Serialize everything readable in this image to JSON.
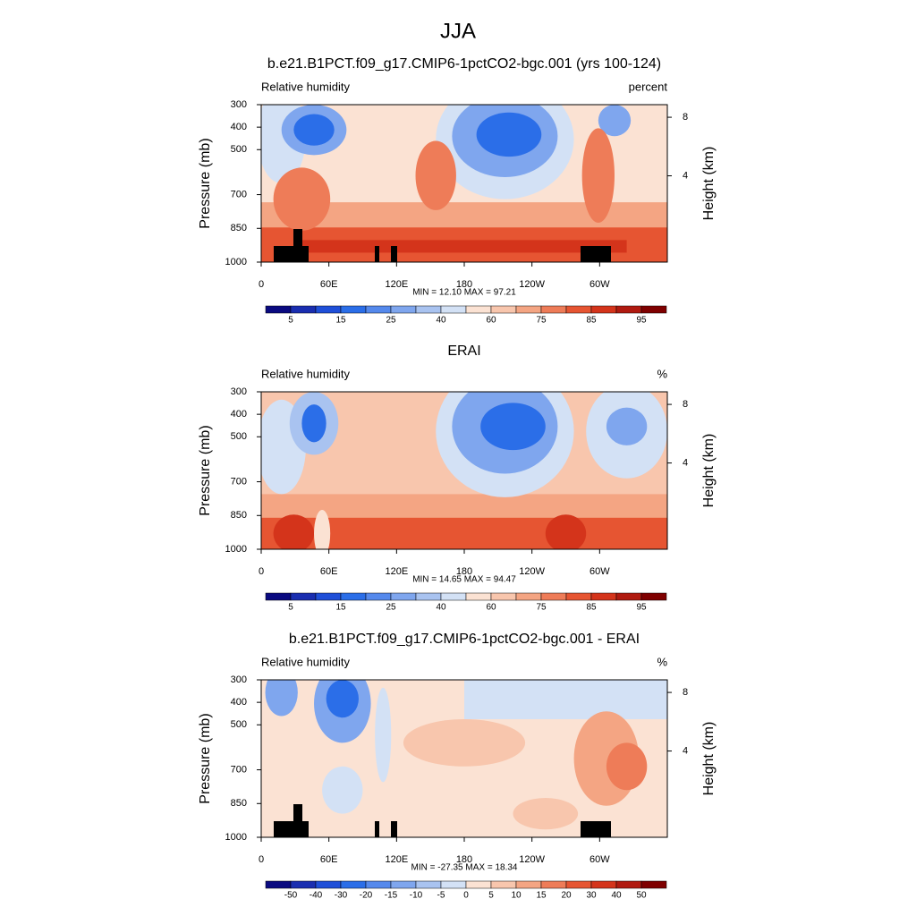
{
  "figure_title": "JJA",
  "chart_data": [
    {
      "type": "contour",
      "title": "b.e21.B1PCT.f09_g17.CMIP6-1pctCO2-bgc.001 (yrs 100-124)",
      "left_label": "Relative humidity",
      "right_label": "percent",
      "ylabel": "Pressure (mb)",
      "y2label": "Height (km)",
      "xlim": [
        0,
        360
      ],
      "xticks": [
        0,
        {
          "value": 60,
          "label": "60E"
        },
        {
          "value": 120,
          "label": "120E"
        },
        180,
        {
          "value": 240,
          "label": "120W"
        },
        {
          "value": 300,
          "label": "60W"
        }
      ],
      "ylim": [
        1000,
        300
      ],
      "yticks": [
        300,
        400,
        500,
        700,
        850,
        1000
      ],
      "y2ticks": [
        4,
        8
      ],
      "stats": "MIN =  12.10  MAX =  97.21",
      "colorbar": {
        "colors": [
          "#0a0a80",
          "#1a2eb0",
          "#1f4fd8",
          "#2b6ee8",
          "#5589ec",
          "#7fa6ee",
          "#a9c3f0",
          "#d3e1f5",
          "#fbe2d3",
          "#f8c6ad",
          "#f4a583",
          "#ee7c58",
          "#e65532",
          "#d4341b",
          "#b01a10",
          "#7f0000"
        ],
        "labels": [
          5,
          15,
          25,
          40,
          60,
          75,
          85,
          95
        ]
      }
    },
    {
      "type": "contour",
      "title": "ERAI",
      "left_label": "Relative humidity",
      "right_label": "%",
      "ylabel": "Pressure (mb)",
      "y2label": "Height (km)",
      "xlim": [
        0,
        360
      ],
      "xticks": [
        0,
        {
          "value": 60,
          "label": "60E"
        },
        {
          "value": 120,
          "label": "120E"
        },
        180,
        {
          "value": 240,
          "label": "120W"
        },
        {
          "value": 300,
          "label": "60W"
        }
      ],
      "ylim": [
        1000,
        300
      ],
      "yticks": [
        300,
        400,
        500,
        700,
        850,
        1000
      ],
      "y2ticks": [
        4,
        8
      ],
      "stats": "MIN =  14.65  MAX =  94.47",
      "colorbar": {
        "colors": [
          "#0a0a80",
          "#1a2eb0",
          "#1f4fd8",
          "#2b6ee8",
          "#5589ec",
          "#7fa6ee",
          "#a9c3f0",
          "#d3e1f5",
          "#fbe2d3",
          "#f8c6ad",
          "#f4a583",
          "#ee7c58",
          "#e65532",
          "#d4341b",
          "#b01a10",
          "#7f0000"
        ],
        "labels": [
          5,
          15,
          25,
          40,
          60,
          75,
          85,
          95
        ]
      }
    },
    {
      "type": "contour",
      "title": "b.e21.B1PCT.f09_g17.CMIP6-1pctCO2-bgc.001 - ERAI",
      "left_label": "Relative humidity",
      "right_label": "%",
      "ylabel": "Pressure (mb)",
      "y2label": "Height (km)",
      "xlim": [
        0,
        360
      ],
      "xticks": [
        0,
        {
          "value": 60,
          "label": "60E"
        },
        {
          "value": 120,
          "label": "120E"
        },
        180,
        {
          "value": 240,
          "label": "120W"
        },
        {
          "value": 300,
          "label": "60W"
        }
      ],
      "ylim": [
        1000,
        300
      ],
      "yticks": [
        300,
        400,
        500,
        700,
        850,
        1000
      ],
      "y2ticks": [
        4,
        8
      ],
      "stats": "MIN = -27.35  MAX =  18.34",
      "colorbar": {
        "colors": [
          "#0a0a80",
          "#1a2eb0",
          "#1f4fd8",
          "#2b6ee8",
          "#5589ec",
          "#7fa6ee",
          "#a9c3f0",
          "#d3e1f5",
          "#fbe2d3",
          "#f8c6ad",
          "#f4a583",
          "#ee7c58",
          "#e65532",
          "#d4341b",
          "#b01a10",
          "#7f0000"
        ],
        "labels": [
          -50,
          -40,
          -30,
          -20,
          -15,
          -10,
          -5,
          0,
          5,
          10,
          15,
          20,
          30,
          40,
          50
        ]
      }
    }
  ]
}
